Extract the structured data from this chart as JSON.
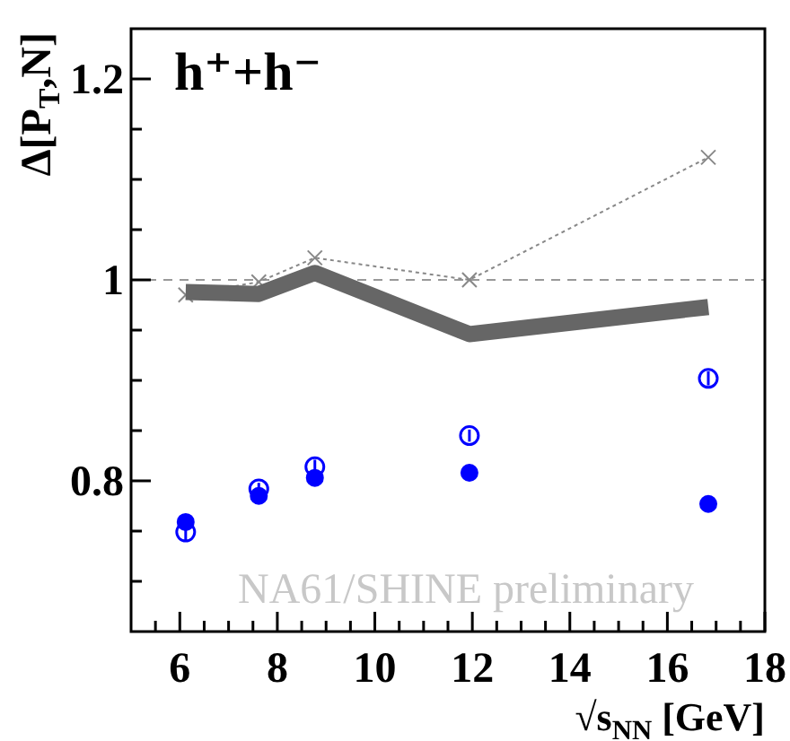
{
  "chart_data": {
    "type": "scatter",
    "ylabel": "Δ[P$_{T}$,N]",
    "xlabel": "√s$_{NN}$ [GeV]",
    "annotations": [
      "h⁺+h⁻",
      "NA61/SHINE preliminary"
    ],
    "x": [
      6.12,
      7.62,
      8.77,
      11.94,
      16.84
    ],
    "series": [
      {
        "type": "line",
        "color": "#888888",
        "line_style": "dotted",
        "marker": "cross",
        "values": [
          0.985,
          0.998,
          1.022,
          1.0,
          1.122
        ]
      },
      {
        "type": "line",
        "color": "#666666",
        "marker": "none",
        "values": [
          0.988,
          0.986,
          1.007,
          0.946,
          0.973
        ]
      },
      {
        "color": "#0000ff",
        "marker": "circle",
        "values": [
          0.759,
          0.785,
          0.803,
          0.808,
          0.777
        ],
        "errors": [
          0.008,
          0.006,
          0.005,
          0.004,
          0.008
        ]
      },
      {
        "color": "#0000ff",
        "marker": "circle",
        "values": [
          0.749,
          0.792,
          0.814,
          0.845,
          0.902
        ],
        "errors": [
          0.008,
          0.006,
          0.007,
          0.006,
          0.007
        ]
      }
    ],
    "xlim": [
      5,
      18
    ],
    "ylim": [
      0.65,
      1.25
    ],
    "xticks": [
      {
        "value": 5.5,
        "label": null
      },
      6,
      {
        "value": 6.5,
        "label": null
      },
      {
        "value": 7,
        "label": null
      },
      {
        "value": 7.5,
        "label": null
      },
      8,
      {
        "value": 8.5,
        "label": null
      },
      {
        "value": 9,
        "label": null
      },
      {
        "value": 9.5,
        "label": null
      },
      10,
      {
        "value": 10.5,
        "label": null
      },
      {
        "value": 11,
        "label": null
      },
      {
        "value": 11.5,
        "label": null
      },
      12,
      {
        "value": 12.5,
        "label": null
      },
      {
        "value": 13,
        "label": null
      },
      {
        "value": 13.5,
        "label": null
      },
      14,
      {
        "value": 14.5,
        "label": null
      },
      {
        "value": 15,
        "label": null
      },
      {
        "value": 15.5,
        "label": null
      },
      16,
      {
        "value": 16.5,
        "label": null
      },
      {
        "value": 17,
        "label": null
      },
      {
        "value": 17.5,
        "label": null
      },
      18
    ],
    "yticks": [
      {
        "value": 0.7,
        "label": null
      },
      {
        "value": 0.75,
        "label": null
      },
      {
        "value": 0.8,
        "label": "0.8"
      },
      {
        "value": 0.85,
        "label": null
      },
      {
        "value": 0.9,
        "label": null
      },
      {
        "value": 0.95,
        "label": null
      },
      1,
      {
        "value": 1.05,
        "label": null
      },
      {
        "value": 1.1,
        "label": null
      },
      {
        "value": 1.15,
        "label": null
      },
      {
        "value": 1.2,
        "label": "1.2"
      }
    ],
    "ref_lines": [
      {
        "axis": "y",
        "value": 1,
        "color": "#999999",
        "line_style": "dashed"
      }
    ],
    "grid": false
  }
}
